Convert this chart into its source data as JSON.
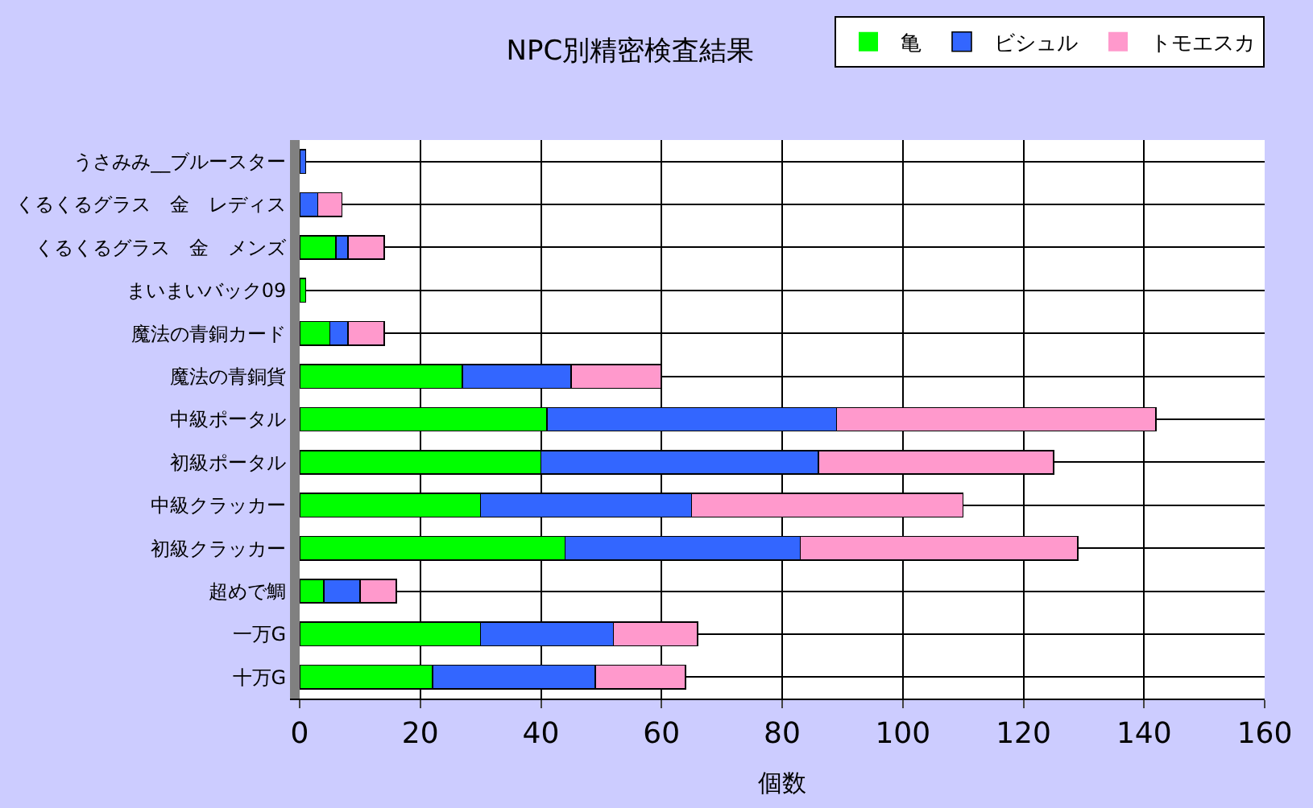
{
  "chart_data": {
    "type": "bar",
    "orientation": "horizontal",
    "stacked": true,
    "title": "NPC別精密検査結果",
    "xlabel": "個数",
    "categories": [
      "うさみみ__ブルースター",
      "くるくるグラス　金　レディス",
      "くるくるグラス　金　メンズ",
      "まいまいバック09",
      "魔法の青銅カード",
      "魔法の青銅貨",
      "中級ポータル",
      "初級ポータル",
      "中級クラッカー",
      "初級クラッカー",
      "超めで鯛",
      "一万G",
      "十万G"
    ],
    "series": [
      {
        "name": "亀",
        "color": "#00ff00",
        "values": [
          0,
          0,
          6,
          1,
          5,
          27,
          41,
          40,
          30,
          44,
          4,
          30,
          22
        ]
      },
      {
        "name": "ビシュル",
        "color": "#3366ff",
        "values": [
          1,
          3,
          2,
          0,
          3,
          18,
          48,
          46,
          35,
          39,
          6,
          22,
          27
        ]
      },
      {
        "name": "トモエスカ",
        "color": "#ff99cc",
        "values": [
          0,
          4,
          6,
          0,
          6,
          15,
          53,
          39,
          45,
          46,
          6,
          14,
          15
        ]
      }
    ],
    "xlim": [
      0,
      160
    ],
    "xticks": [
      0,
      20,
      40,
      60,
      80,
      100,
      120,
      140,
      160
    ],
    "grid": true,
    "legend": "top right"
  }
}
